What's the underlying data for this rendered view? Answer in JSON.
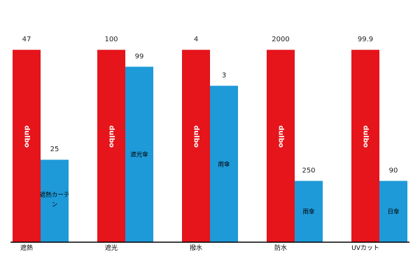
{
  "chart_data": {
    "type": "bar",
    "categories": [
      "遮熱",
      "遮光",
      "撥水",
      "防水",
      "UVカット"
    ],
    "series": [
      {
        "name": "dulbo",
        "color": "#e5151b",
        "values": [
          47,
          100,
          4,
          2000,
          99.9
        ],
        "bar_labels": [
          "dulbo",
          "dulbo",
          "dulbo",
          "dulbo",
          "dulbo"
        ],
        "value_labels": [
          "47",
          "100",
          "4",
          "2000",
          "99.9"
        ],
        "relative_level": [
          0.91,
          0.91,
          0.91,
          0.91,
          0.91
        ]
      },
      {
        "color": "#1e9ad8",
        "values": [
          25,
          99,
          3,
          250,
          90
        ],
        "bar_labels": [
          "遮熱カーテン",
          "遮光傘",
          "雨傘",
          "雨傘",
          "日傘"
        ],
        "value_labels": [
          "25",
          "99",
          "3",
          "250",
          "90"
        ],
        "relative_level": [
          0.39,
          0.83,
          0.74,
          0.29,
          0.29
        ]
      }
    ],
    "title": "",
    "xlabel": "",
    "ylabel": "",
    "grid": false,
    "legend": "none",
    "note": ""
  }
}
